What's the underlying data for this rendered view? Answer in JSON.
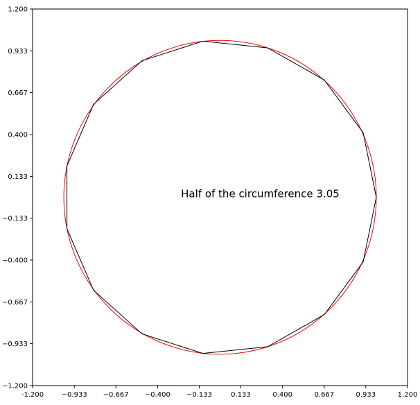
{
  "chart_data": {
    "type": "line",
    "title": "",
    "xlabel": "",
    "ylabel": "",
    "xlim": [
      -1.2,
      1.2
    ],
    "ylim": [
      -1.2,
      1.2
    ],
    "grid": false,
    "x_ticks": [
      "-1.200",
      "−0.933",
      "−0.667",
      "−0.400",
      "−0.133",
      "0.133",
      "0.400",
      "0.667",
      "0.933",
      "1.200"
    ],
    "y_ticks": [
      "1.200",
      "0.933",
      "0.667",
      "0.400",
      "0.133",
      "−0.133",
      "−0.400",
      "−0.667",
      "−0.933",
      "−1.200"
    ],
    "tick_values": [
      -1.2,
      -0.933,
      -0.667,
      -0.4,
      -0.133,
      0.133,
      0.4,
      0.667,
      0.933,
      1.2
    ],
    "annotation": {
      "text": "Half of the circumference 3.05",
      "x": -0.25,
      "y": 0.02
    },
    "series": [
      {
        "kind": "circle",
        "color": "#ff0000",
        "center": [
          0.0,
          0.0
        ],
        "radius": 1.0
      },
      {
        "kind": "polygon",
        "color": "#000000",
        "points": [
          [
            1.0,
            0.0
          ],
          [
            0.916,
            0.412
          ],
          [
            0.667,
            0.748
          ],
          [
            0.305,
            0.952
          ],
          [
            -0.11,
            0.995
          ],
          [
            -0.5,
            0.87
          ],
          [
            -0.81,
            0.592
          ],
          [
            -0.98,
            0.2
          ],
          [
            -0.98,
            -0.2
          ],
          [
            -0.81,
            -0.592
          ],
          [
            -0.5,
            -0.87
          ],
          [
            -0.11,
            -0.995
          ],
          [
            0.305,
            -0.952
          ],
          [
            0.667,
            -0.748
          ],
          [
            0.916,
            -0.412
          ]
        ]
      }
    ]
  }
}
